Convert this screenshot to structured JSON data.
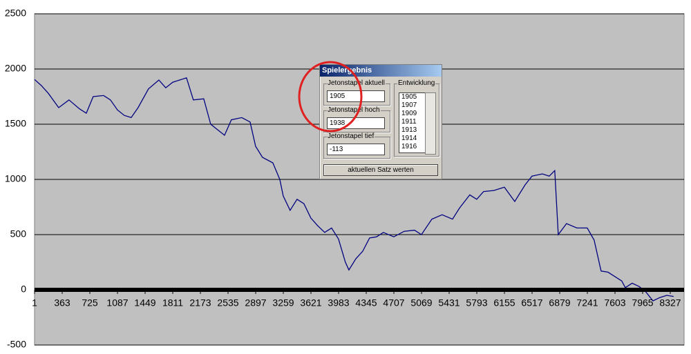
{
  "chart_data": {
    "type": "line",
    "x": [
      1,
      90,
      181,
      317,
      452,
      588,
      679,
      769,
      905,
      995,
      1086,
      1176,
      1267,
      1357,
      1493,
      1629,
      1719,
      1810,
      1900,
      1991,
      2081,
      2217,
      2308,
      2398,
      2489,
      2579,
      2715,
      2824,
      2896,
      2986,
      3122,
      3213,
      3258,
      3348,
      3439,
      3529,
      3620,
      3710,
      3801,
      3891,
      3982,
      4072,
      4118,
      4208,
      4299,
      4389,
      4480,
      4570,
      4706,
      4842,
      4977,
      5068,
      5204,
      5339,
      5475,
      5566,
      5701,
      5792,
      5882,
      6018,
      6154,
      6290,
      6425,
      6516,
      6652,
      6742,
      6814,
      6860,
      6968,
      7104,
      7240,
      7330,
      7421,
      7511,
      7602,
      7692,
      7738,
      7828,
      7919,
      8009,
      8100,
      8190,
      8281,
      8371
    ],
    "series": [
      {
        "color": "#000080",
        "values": [
          1905,
          1850,
          1780,
          1650,
          1720,
          1640,
          1600,
          1750,
          1760,
          1720,
          1630,
          1580,
          1560,
          1650,
          1820,
          1900,
          1830,
          1880,
          1900,
          1920,
          1720,
          1730,
          1500,
          1450,
          1400,
          1540,
          1560,
          1520,
          1300,
          1200,
          1150,
          1000,
          850,
          720,
          820,
          780,
          650,
          580,
          520,
          560,
          460,
          250,
          180,
          280,
          350,
          470,
          480,
          520,
          480,
          530,
          540,
          500,
          640,
          680,
          640,
          740,
          860,
          820,
          890,
          900,
          930,
          800,
          950,
          1030,
          1050,
          1030,
          1080,
          500,
          600,
          560,
          560,
          450,
          170,
          160,
          120,
          80,
          20,
          60,
          30,
          -20,
          -100,
          -70,
          -50,
          -60
        ]
      }
    ],
    "xlim": [
      1,
      8508
    ],
    "xticks": [
      1,
      363,
      725,
      1087,
      1449,
      1811,
      2173,
      2535,
      2897,
      3259,
      3621,
      3983,
      4345,
      4707,
      5069,
      5431,
      5793,
      6155,
      6517,
      6879,
      7241,
      7603,
      7965,
      8327
    ],
    "ylim": [
      -500,
      2500
    ],
    "yticks": [
      -500,
      0,
      500,
      1000,
      1500,
      2000,
      2500
    ],
    "grid": true
  },
  "dialog": {
    "title": "Spielergebnis",
    "groups": [
      {
        "label": "Jetonstapel aktuell",
        "value": "1905"
      },
      {
        "label": "Jetonstapel hoch",
        "value": "1938"
      },
      {
        "label": "Jetonstapel tief",
        "value": "-113"
      }
    ],
    "list_label": "Entwicklung",
    "list": [
      "1905",
      "1907",
      "1909",
      "1911",
      "1913",
      "1914",
      "1916"
    ],
    "button": "aktuellen Satz werten"
  }
}
